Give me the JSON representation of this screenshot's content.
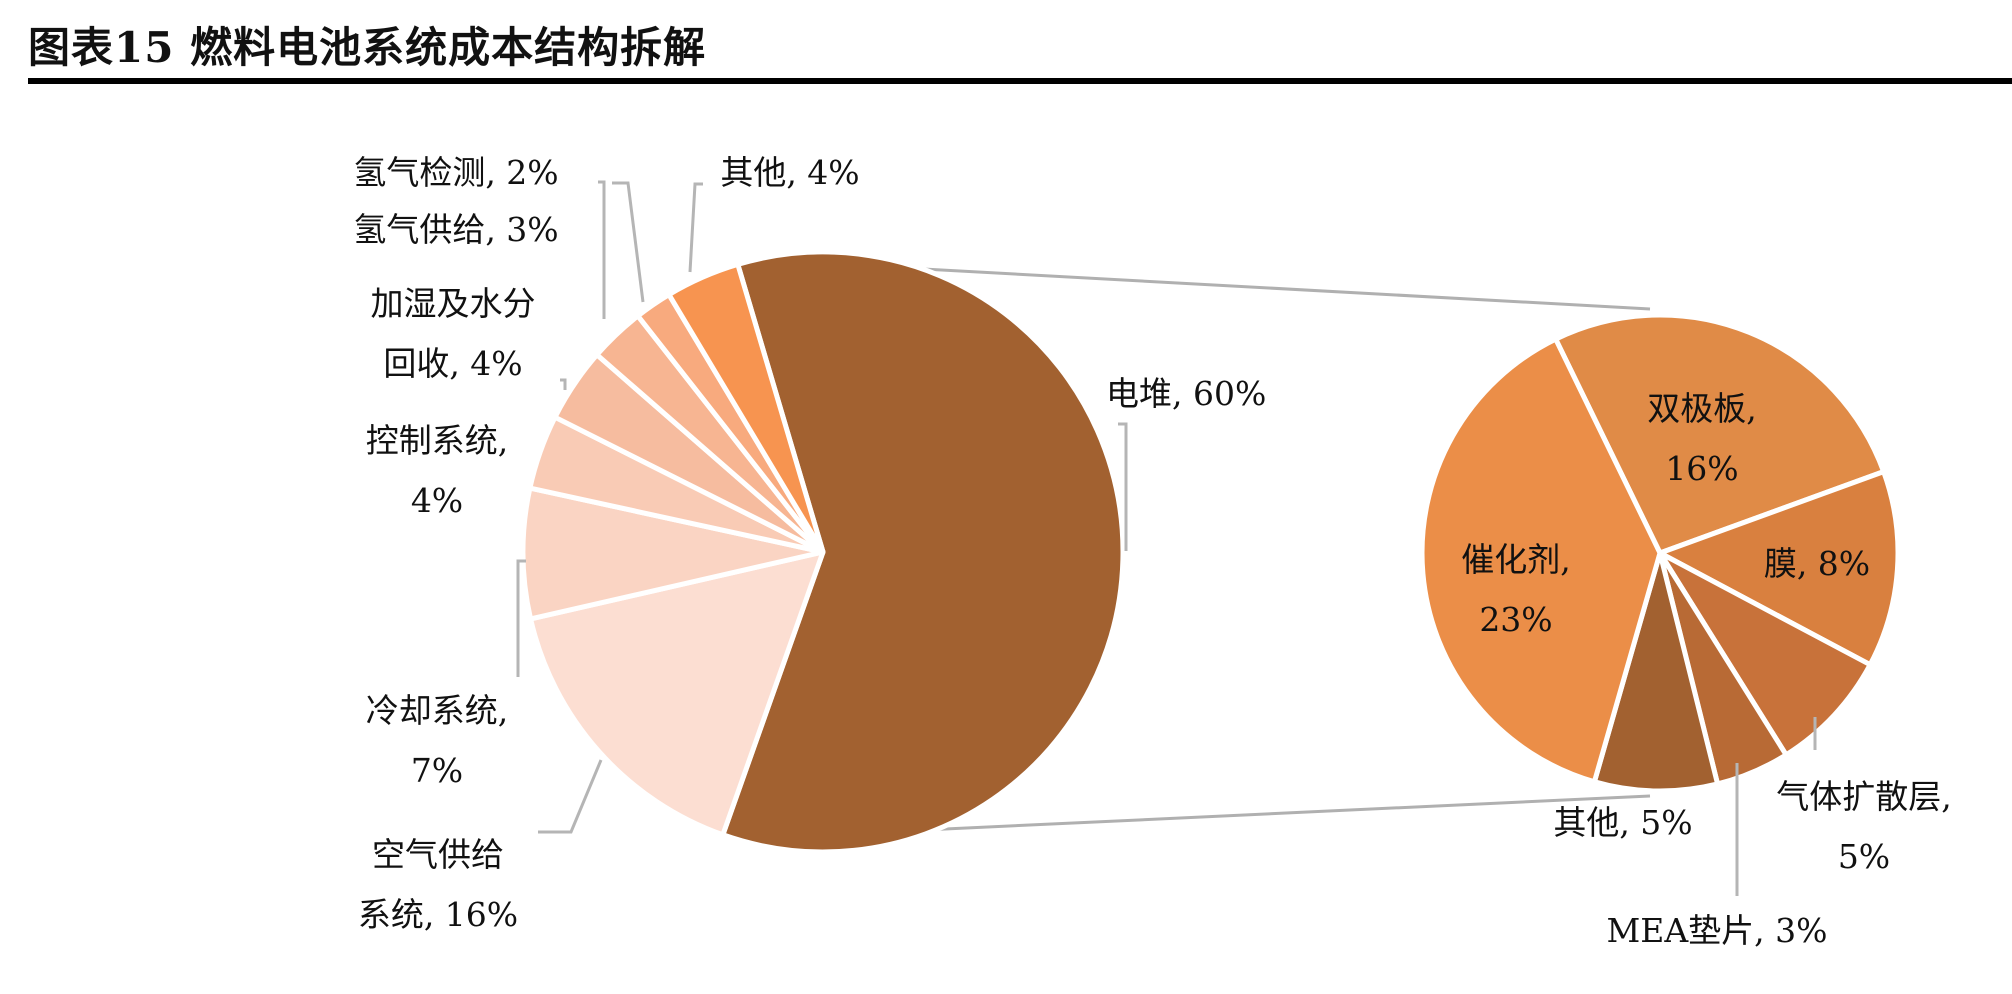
{
  "title": "图表15 燃料电池系统成本结构拆解",
  "chart_data": [
    {
      "type": "pie",
      "title": "",
      "slices": [
        {
          "label": "电堆",
          "value": 60,
          "display": "电堆, 60%",
          "color": "#A26130"
        },
        {
          "label": "空气供给系统",
          "value": 16,
          "display": [
            "空气供给",
            "系统, 16%"
          ],
          "color": "#FCDED2"
        },
        {
          "label": "冷却系统",
          "value": 7,
          "display": [
            "冷却系统,",
            "7%"
          ],
          "color": "#FAD4C3"
        },
        {
          "label": "控制系统",
          "value": 4,
          "display": [
            "控制系统,",
            "4%"
          ],
          "color": "#F9CBB5"
        },
        {
          "label": "加湿及水分回收",
          "value": 4,
          "display": [
            "加湿及水分",
            "回收, 4%"
          ],
          "color": "#F6BC9F"
        },
        {
          "label": "氢气供给",
          "value": 3,
          "display": "氢气供给, 3%",
          "color": "#F7B592"
        },
        {
          "label": "氢气检测",
          "value": 2,
          "display": "氢气检测, 2%",
          "color": "#F8AA7E"
        },
        {
          "label": "其他",
          "value": 4,
          "display": "其他, 4%",
          "color": "#F79450"
        }
      ]
    },
    {
      "type": "pie",
      "title": "",
      "slices": [
        {
          "label": "双极板",
          "value": 16,
          "display": [
            "双极板,",
            "16%"
          ],
          "color": "#E08B47"
        },
        {
          "label": "膜",
          "value": 8,
          "display": "膜, 8%",
          "color": "#D9803F"
        },
        {
          "label": "气体扩散层",
          "value": 5,
          "display": [
            "气体扩散层,",
            "5%"
          ],
          "color": "#C8723A"
        },
        {
          "label": "MEA垫片",
          "value": 3,
          "display": "MEA垫片, 3%",
          "color": "#B86A35"
        },
        {
          "label": "其他",
          "value": 5,
          "display": "其他, 5%",
          "color": "#A26130"
        },
        {
          "label": "催化剂",
          "value": 23,
          "display": [
            "催化剂,",
            "23%"
          ],
          "color": "#EB8E48"
        }
      ]
    }
  ]
}
